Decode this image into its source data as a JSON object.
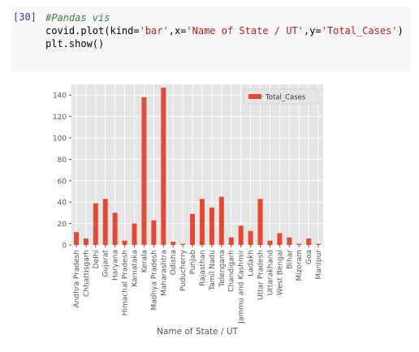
{
  "cell": {
    "prompt": "[30]",
    "code_lines": [
      [
        {
          "t": "comment",
          "v": "#Pandas vis"
        }
      ],
      [
        {
          "t": "plain",
          "v": "covid.plot(kind="
        },
        {
          "t": "str",
          "v": "'bar'"
        },
        {
          "t": "plain",
          "v": ",x="
        },
        {
          "t": "str",
          "v": "'Name of State / UT'"
        },
        {
          "t": "plain",
          "v": ",y="
        },
        {
          "t": "str",
          "v": "'Total_Cases'"
        },
        {
          "t": "plain",
          "v": ")"
        }
      ],
      [
        {
          "t": "plain",
          "v": "plt.show()"
        }
      ]
    ]
  },
  "chart_data": {
    "type": "bar",
    "xlabel": "Name of State / UT",
    "ylabel": "",
    "ylim": [
      0,
      150
    ],
    "yticks": [
      0,
      20,
      40,
      60,
      80,
      100,
      120,
      140
    ],
    "grid": true,
    "legend_position": "top-right",
    "series": [
      {
        "name": "Total_Cases",
        "color": "#e24a33"
      }
    ],
    "categories": [
      "Andhra Pradesh",
      "Chhattisgarh",
      "Delhi",
      "Gujarat",
      "Haryana",
      "Himachal Pradesh",
      "Karnataka",
      "Kerala",
      "Madhya Pradesh",
      "Maharashtra",
      "Odisha",
      "Puducherry",
      "Punjab",
      "Rajasthan",
      "Tamil Nadu",
      "Telengana",
      "Chandigarh",
      "Jammu and Kashmir",
      "Ladakh",
      "Uttar Pradesh",
      "Uttarakhand",
      "West Bengal",
      "Bihar",
      "Mizoram",
      "Goa",
      "Manipur"
    ],
    "values": [
      12,
      6,
      39,
      43,
      30,
      4,
      20,
      138,
      23,
      147,
      3,
      1,
      29,
      43,
      35,
      45,
      7,
      18,
      13,
      43,
      4,
      11,
      7,
      1,
      6,
      1
    ]
  }
}
